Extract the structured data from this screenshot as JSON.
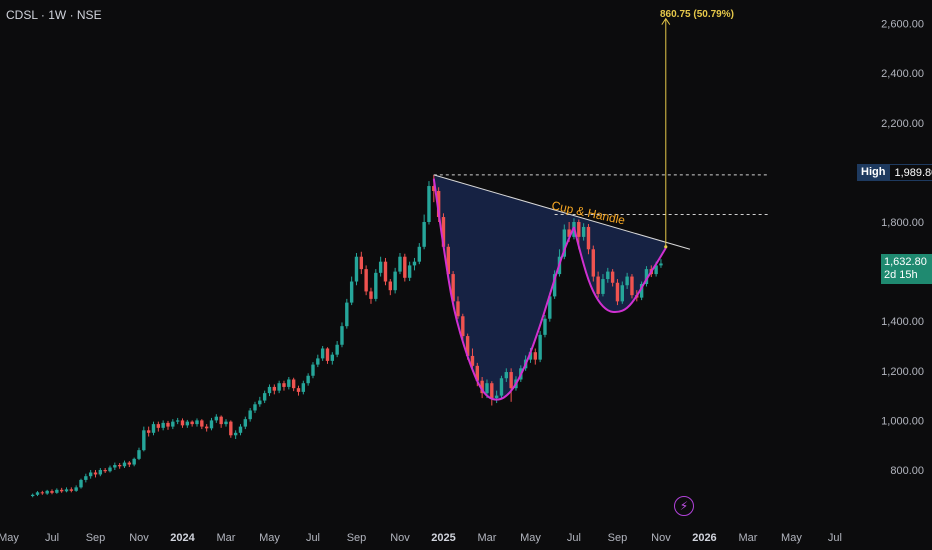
{
  "header": {
    "ticker": "CDSL · 1W · NSE"
  },
  "price_tags": {
    "high_label": "High",
    "high_value": "1,989.80",
    "last_price": "1,632.80",
    "countdown": "2d 15h"
  },
  "annotations": {
    "pattern_label": "Cup & Handle",
    "target_label": "860.75 (50.79%)"
  },
  "icons": {
    "alert": "lightning-bolt-icon"
  },
  "colors": {
    "up": "#26a69a",
    "down": "#ef5350",
    "cup_line": "#d030d0",
    "cup_fill": "#1a2a55",
    "trend": "#d8d8d8",
    "target": "#e6c84a",
    "label_orange": "#f5a623",
    "price_tag": "#1f8a70"
  },
  "chart_data": {
    "type": "candlestick",
    "title": "",
    "ylim": [
      680,
      2700
    ],
    "y_ticks": [
      {
        "value": 2600,
        "label": "2,600.00"
      },
      {
        "value": 2400,
        "label": "2,400.00"
      },
      {
        "value": 2200,
        "label": "2,200.00"
      },
      {
        "value": 1800,
        "label": "1,800.00"
      },
      {
        "value": 1400,
        "label": "1,400.00"
      },
      {
        "value": 1200,
        "label": "1,200.00"
      },
      {
        "value": 1000,
        "label": "1,000.00"
      },
      {
        "value": 800,
        "label": "800.00"
      }
    ],
    "x_ticks": [
      {
        "week": -4,
        "label": "May"
      },
      {
        "week": 5,
        "label": "Jul"
      },
      {
        "week": 14,
        "label": "Sep"
      },
      {
        "week": 23,
        "label": "Nov"
      },
      {
        "week": 32,
        "label": "2024",
        "bold": true
      },
      {
        "week": 41,
        "label": "Mar"
      },
      {
        "week": 50,
        "label": "May"
      },
      {
        "week": 59,
        "label": "Jul"
      },
      {
        "week": 68,
        "label": "Sep"
      },
      {
        "week": 77,
        "label": "Nov"
      },
      {
        "week": 86,
        "label": "2025",
        "bold": true
      },
      {
        "week": 95,
        "label": "Mar"
      },
      {
        "week": 104,
        "label": "May"
      },
      {
        "week": 113,
        "label": "Jul"
      },
      {
        "week": 122,
        "label": "Sep"
      },
      {
        "week": 131,
        "label": "Nov"
      },
      {
        "week": 140,
        "label": "2026",
        "bold": true
      },
      {
        "week": 149,
        "label": "Mar"
      },
      {
        "week": 158,
        "label": "May"
      },
      {
        "week": 167,
        "label": "Jul"
      }
    ],
    "high": 1989.8,
    "last": 1632.8,
    "neckline_level": 1830,
    "target_arrow_top": 2620,
    "trendline": [
      {
        "week": 84,
        "value": 1990
      },
      {
        "week": 137,
        "value": 1690
      }
    ],
    "cup_points": [
      {
        "week": 84,
        "value": 1975
      },
      {
        "week": 86,
        "value": 1700
      },
      {
        "week": 88,
        "value": 1450
      },
      {
        "week": 91,
        "value": 1250
      },
      {
        "week": 94,
        "value": 1110
      },
      {
        "week": 97,
        "value": 1075
      },
      {
        "week": 100,
        "value": 1110
      },
      {
        "week": 103,
        "value": 1220
      },
      {
        "week": 106,
        "value": 1380
      },
      {
        "week": 109,
        "value": 1570
      },
      {
        "week": 111,
        "value": 1690
      },
      {
        "week": 113,
        "value": 1780
      }
    ],
    "handle_points": [
      {
        "week": 113,
        "value": 1780
      },
      {
        "week": 114,
        "value": 1700
      },
      {
        "week": 116,
        "value": 1560
      },
      {
        "week": 118,
        "value": 1480
      },
      {
        "week": 120,
        "value": 1440
      },
      {
        "week": 122,
        "value": 1435
      },
      {
        "week": 124,
        "value": 1450
      },
      {
        "week": 126,
        "value": 1500
      },
      {
        "week": 128,
        "value": 1570
      },
      {
        "week": 130,
        "value": 1630
      },
      {
        "week": 132,
        "value": 1695
      }
    ],
    "candles": [
      [
        1,
        695,
        700,
        690,
        705
      ],
      [
        2,
        700,
        710,
        695,
        715
      ],
      [
        3,
        710,
        706,
        700,
        716
      ],
      [
        4,
        705,
        716,
        700,
        720
      ],
      [
        5,
        715,
        708,
        702,
        722
      ],
      [
        6,
        708,
        720,
        704,
        726
      ],
      [
        7,
        720,
        714,
        708,
        728
      ],
      [
        8,
        714,
        722,
        710,
        730
      ],
      [
        9,
        722,
        716,
        710,
        730
      ],
      [
        10,
        716,
        730,
        712,
        738
      ],
      [
        11,
        730,
        760,
        725,
        765
      ],
      [
        12,
        760,
        775,
        750,
        785
      ],
      [
        13,
        775,
        790,
        765,
        800
      ],
      [
        14,
        790,
        782,
        770,
        800
      ],
      [
        15,
        782,
        800,
        775,
        808
      ],
      [
        16,
        800,
        795,
        788,
        808
      ],
      [
        17,
        795,
        810,
        790,
        818
      ],
      [
        18,
        810,
        820,
        800,
        830
      ],
      [
        19,
        820,
        815,
        805,
        828
      ],
      [
        20,
        815,
        830,
        808,
        838
      ],
      [
        21,
        830,
        822,
        812,
        836
      ],
      [
        22,
        822,
        845,
        815,
        850
      ],
      [
        23,
        845,
        880,
        840,
        890
      ],
      [
        24,
        880,
        960,
        875,
        975
      ],
      [
        25,
        960,
        950,
        935,
        975
      ],
      [
        26,
        950,
        985,
        940,
        995
      ],
      [
        27,
        985,
        970,
        955,
        995
      ],
      [
        28,
        970,
        990,
        960,
        1000
      ],
      [
        29,
        990,
        975,
        962,
        998
      ],
      [
        30,
        975,
        995,
        965,
        1005
      ],
      [
        31,
        995,
        1000,
        985,
        1010
      ],
      [
        32,
        1000,
        980,
        970,
        1008
      ],
      [
        33,
        980,
        995,
        970,
        1002
      ],
      [
        34,
        995,
        985,
        975,
        1000
      ],
      [
        35,
        985,
        1000,
        975,
        1008
      ],
      [
        36,
        1000,
        975,
        965,
        1005
      ],
      [
        37,
        975,
        968,
        955,
        985
      ],
      [
        38,
        968,
        1000,
        960,
        1010
      ],
      [
        39,
        1000,
        1015,
        990,
        1025
      ],
      [
        40,
        1015,
        985,
        970,
        1020
      ],
      [
        41,
        985,
        995,
        975,
        1005
      ],
      [
        42,
        995,
        940,
        930,
        1000
      ],
      [
        43,
        940,
        950,
        925,
        960
      ],
      [
        44,
        950,
        975,
        940,
        985
      ],
      [
        45,
        975,
        1005,
        965,
        1015
      ],
      [
        46,
        1005,
        1040,
        995,
        1050
      ],
      [
        47,
        1040,
        1065,
        1030,
        1075
      ],
      [
        48,
        1065,
        1080,
        1055,
        1095
      ],
      [
        49,
        1080,
        1110,
        1070,
        1120
      ],
      [
        50,
        1110,
        1135,
        1098,
        1145
      ],
      [
        51,
        1135,
        1120,
        1105,
        1145
      ],
      [
        52,
        1120,
        1150,
        1110,
        1160
      ],
      [
        53,
        1150,
        1135,
        1120,
        1160
      ],
      [
        54,
        1135,
        1165,
        1125,
        1175
      ],
      [
        55,
        1165,
        1130,
        1118,
        1172
      ],
      [
        56,
        1130,
        1115,
        1100,
        1140
      ],
      [
        57,
        1115,
        1150,
        1105,
        1160
      ],
      [
        58,
        1150,
        1180,
        1140,
        1190
      ],
      [
        59,
        1180,
        1225,
        1170,
        1235
      ],
      [
        60,
        1225,
        1250,
        1215,
        1265
      ],
      [
        61,
        1250,
        1290,
        1240,
        1300
      ],
      [
        62,
        1290,
        1240,
        1228,
        1295
      ],
      [
        63,
        1240,
        1265,
        1225,
        1275
      ],
      [
        64,
        1265,
        1305,
        1255,
        1320
      ],
      [
        65,
        1305,
        1380,
        1295,
        1395
      ],
      [
        66,
        1380,
        1475,
        1370,
        1490
      ],
      [
        67,
        1475,
        1560,
        1465,
        1580
      ],
      [
        68,
        1560,
        1660,
        1545,
        1675
      ],
      [
        69,
        1660,
        1610,
        1590,
        1680
      ],
      [
        70,
        1610,
        1520,
        1505,
        1625
      ],
      [
        71,
        1520,
        1490,
        1470,
        1535
      ],
      [
        72,
        1490,
        1595,
        1480,
        1610
      ],
      [
        73,
        1595,
        1640,
        1580,
        1660
      ],
      [
        74,
        1640,
        1560,
        1545,
        1655
      ],
      [
        75,
        1560,
        1525,
        1505,
        1570
      ],
      [
        76,
        1525,
        1600,
        1512,
        1615
      ],
      [
        77,
        1600,
        1660,
        1590,
        1675
      ],
      [
        78,
        1660,
        1575,
        1560,
        1672
      ],
      [
        79,
        1575,
        1625,
        1562,
        1640
      ],
      [
        80,
        1625,
        1640,
        1605,
        1655
      ],
      [
        81,
        1640,
        1700,
        1630,
        1715
      ],
      [
        82,
        1700,
        1800,
        1690,
        1830
      ],
      [
        83,
        1800,
        1945,
        1790,
        1965
      ],
      [
        84,
        1945,
        1925,
        1880,
        1990
      ],
      [
        85,
        1925,
        1820,
        1800,
        1940
      ],
      [
        86,
        1820,
        1700,
        1690,
        1835
      ],
      [
        87,
        1700,
        1590,
        1570,
        1712
      ],
      [
        88,
        1590,
        1480,
        1460,
        1602
      ],
      [
        89,
        1480,
        1420,
        1410,
        1500
      ],
      [
        90,
        1420,
        1340,
        1320,
        1430
      ],
      [
        91,
        1340,
        1260,
        1245,
        1350
      ],
      [
        92,
        1260,
        1220,
        1198,
        1290
      ],
      [
        93,
        1220,
        1160,
        1138,
        1232
      ],
      [
        94,
        1160,
        1110,
        1090,
        1175
      ],
      [
        95,
        1110,
        1150,
        1090,
        1165
      ],
      [
        96,
        1150,
        1090,
        1060,
        1158
      ],
      [
        97,
        1090,
        1100,
        1070,
        1120
      ],
      [
        98,
        1100,
        1170,
        1090,
        1180
      ],
      [
        99,
        1170,
        1195,
        1155,
        1210
      ],
      [
        100,
        1195,
        1130,
        1075,
        1210
      ],
      [
        101,
        1130,
        1165,
        1120,
        1178
      ],
      [
        102,
        1165,
        1210,
        1155,
        1222
      ],
      [
        103,
        1210,
        1245,
        1200,
        1262
      ],
      [
        104,
        1245,
        1275,
        1232,
        1292
      ],
      [
        105,
        1275,
        1245,
        1225,
        1290
      ],
      [
        106,
        1245,
        1345,
        1235,
        1360
      ],
      [
        107,
        1345,
        1410,
        1335,
        1425
      ],
      [
        108,
        1410,
        1500,
        1398,
        1515
      ],
      [
        109,
        1500,
        1590,
        1490,
        1605
      ],
      [
        110,
        1590,
        1660,
        1580,
        1690
      ],
      [
        111,
        1660,
        1770,
        1650,
        1790
      ],
      [
        112,
        1770,
        1740,
        1720,
        1800
      ],
      [
        113,
        1740,
        1800,
        1730,
        1815
      ],
      [
        114,
        1800,
        1740,
        1690,
        1810
      ],
      [
        115,
        1740,
        1780,
        1725,
        1795
      ],
      [
        116,
        1780,
        1690,
        1670,
        1792
      ],
      [
        117,
        1690,
        1580,
        1560,
        1705
      ],
      [
        118,
        1580,
        1510,
        1495,
        1600
      ],
      [
        119,
        1510,
        1570,
        1500,
        1590
      ],
      [
        120,
        1570,
        1600,
        1555,
        1615
      ],
      [
        121,
        1600,
        1555,
        1540,
        1610
      ],
      [
        122,
        1555,
        1480,
        1465,
        1570
      ],
      [
        123,
        1480,
        1545,
        1470,
        1560
      ],
      [
        124,
        1545,
        1580,
        1530,
        1595
      ],
      [
        125,
        1580,
        1505,
        1492,
        1590
      ],
      [
        126,
        1505,
        1495,
        1480,
        1525
      ],
      [
        127,
        1495,
        1550,
        1485,
        1560
      ],
      [
        128,
        1550,
        1610,
        1540,
        1622
      ],
      [
        129,
        1610,
        1590,
        1578,
        1625
      ],
      [
        130,
        1590,
        1625,
        1580,
        1640
      ],
      [
        131,
        1625,
        1632.8,
        1615,
        1650
      ]
    ]
  }
}
